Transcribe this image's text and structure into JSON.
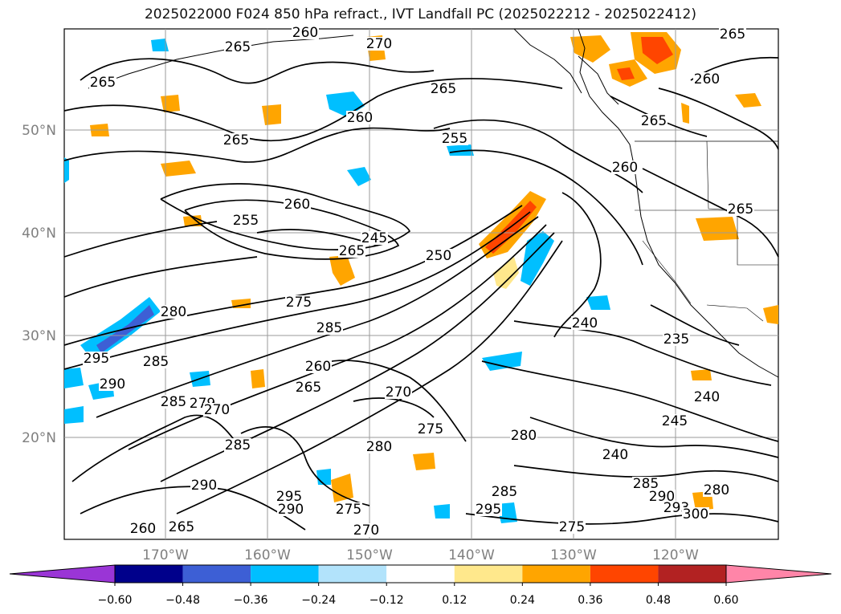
{
  "title": "2025022000 F024 850 hPa refract., IVT Landfall PC (2025022212 - 2025022412)",
  "map": {
    "lat_labels": [
      "50°N",
      "40°N",
      "30°N",
      "20°N"
    ],
    "lon_labels": [
      "170°W",
      "160°W",
      "150°W",
      "140°W",
      "130°W",
      "120°W"
    ],
    "gridlines": true,
    "contour_color": "#000000",
    "contour_labels": [
      "265",
      "260",
      "270",
      "265",
      "265",
      "265",
      "260",
      "265",
      "255",
      "260",
      "265",
      "260",
      "255",
      "260",
      "265",
      "265",
      "245",
      "250",
      "275",
      "285",
      "280",
      "285",
      "295",
      "290",
      "285",
      "260",
      "265",
      "270",
      "275",
      "240",
      "235",
      "240",
      "245",
      "240",
      "285",
      "290",
      "293",
      "300",
      "280",
      "285",
      "295",
      "275",
      "280",
      "280",
      "285",
      "290",
      "295",
      "290",
      "275",
      "270",
      "260",
      "265",
      "279",
      "270"
    ]
  },
  "colorbar": {
    "ticks": [
      "−0.60",
      "−0.48",
      "−0.36",
      "−0.24",
      "−0.12",
      "0.12",
      "0.24",
      "0.36",
      "0.48",
      "0.60"
    ],
    "colors": [
      "#9a35d6",
      "#00008b",
      "#3d5fd5",
      "#00bfff",
      "#b2e3fb",
      "#ffffff",
      "#ffe88c",
      "#ffa500",
      "#ff4500",
      "#b22222",
      "#ff85a8"
    ],
    "extend": "both"
  }
}
